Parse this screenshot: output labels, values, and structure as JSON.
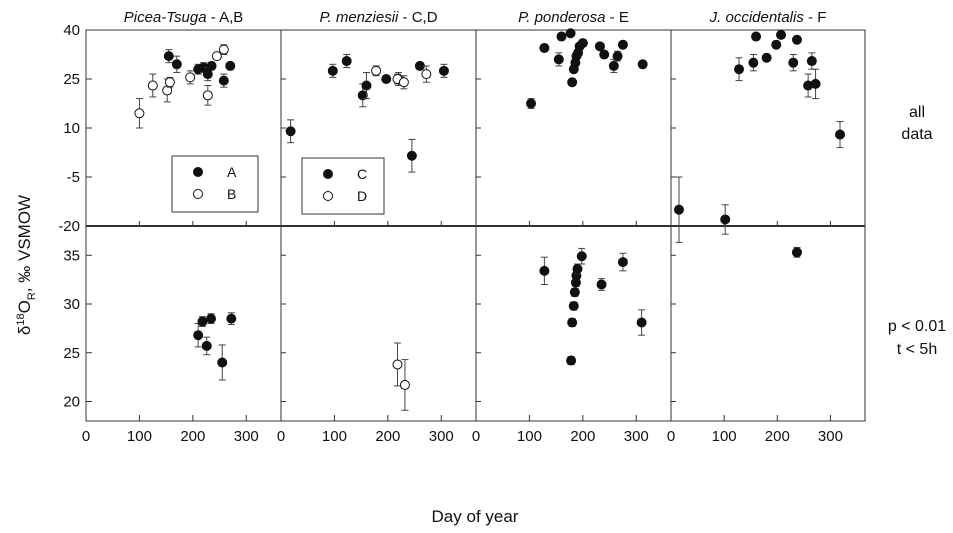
{
  "chart_data": {
    "type": "scatter",
    "xlabel": "Day of year",
    "ylabel": "δ18OR, ‰ VSMOW",
    "xlim": [
      0,
      365
    ],
    "xticks": [
      0,
      100,
      200,
      300
    ],
    "panels_top": {
      "row_label": [
        "all",
        "data"
      ],
      "ylim": [
        -20,
        40
      ],
      "yticks": [
        40,
        25,
        10,
        -5,
        -20
      ],
      "ytick_labels": [
        "40",
        "25",
        "10",
        "-5",
        "-20"
      ]
    },
    "panels_bottom": {
      "row_label": [
        "p < 0.01",
        "t < 5h"
      ],
      "ylim": [
        18,
        38
      ],
      "yticks": [
        35,
        30,
        25,
        20
      ],
      "ytick_labels": [
        "35",
        "30",
        "25",
        "20"
      ]
    },
    "columns": [
      {
        "title_italic": "Picea-Tsuga",
        "title_rest": " - A,B",
        "legend": [
          {
            "marker": "filled",
            "label": "A"
          },
          {
            "marker": "open",
            "label": "B"
          }
        ],
        "top_series": [
          {
            "name": "A",
            "marker": "filled",
            "points": [
              {
                "x": 155,
                "y": 32.0,
                "err": 2.0
              },
              {
                "x": 170,
                "y": 29.5,
                "err": 2.5
              },
              {
                "x": 210,
                "y": 28.0,
                "err": 1.5
              },
              {
                "x": 220,
                "y": 28.5,
                "err": 1.5
              },
              {
                "x": 228,
                "y": 26.5,
                "err": 2.0
              },
              {
                "x": 235,
                "y": 29.0,
                "err": 1.0
              },
              {
                "x": 258,
                "y": 24.5,
                "err": 2.0
              },
              {
                "x": 270,
                "y": 29.0,
                "err": 1.0
              }
            ]
          },
          {
            "name": "B",
            "marker": "open",
            "points": [
              {
                "x": 100,
                "y": 14.5,
                "err": 4.5
              },
              {
                "x": 125,
                "y": 23.0,
                "err": 3.5
              },
              {
                "x": 152,
                "y": 21.5,
                "err": 3.5
              },
              {
                "x": 157,
                "y": 24.0,
                "err": 1.5
              },
              {
                "x": 195,
                "y": 25.5,
                "err": 2.0
              },
              {
                "x": 228,
                "y": 20.0,
                "err": 3.0
              },
              {
                "x": 245,
                "y": 32.0,
                "err": 1.0
              },
              {
                "x": 258,
                "y": 34.0,
                "err": 1.5
              }
            ]
          }
        ],
        "bottom_series": [
          {
            "name": "A",
            "marker": "filled",
            "points": [
              {
                "x": 210,
                "y": 26.8,
                "err": 1.2
              },
              {
                "x": 218,
                "y": 28.2,
                "err": 0.5
              },
              {
                "x": 226,
                "y": 25.7,
                "err": 0.9
              },
              {
                "x": 234,
                "y": 28.5,
                "err": 0.5
              },
              {
                "x": 255,
                "y": 24.0,
                "err": 1.8
              },
              {
                "x": 272,
                "y": 28.5,
                "err": 0.6
              }
            ]
          }
        ]
      },
      {
        "title_italic": "P. menziesii",
        "title_rest": " - C,D",
        "legend": [
          {
            "marker": "filled",
            "label": "C"
          },
          {
            "marker": "open",
            "label": "D"
          }
        ],
        "top_series": [
          {
            "name": "C",
            "marker": "filled",
            "points": [
              {
                "x": 18,
                "y": 9.0,
                "err": 3.5
              },
              {
                "x": 97,
                "y": 27.5,
                "err": 2.0
              },
              {
                "x": 123,
                "y": 30.5,
                "err": 2.0
              },
              {
                "x": 153,
                "y": 20.0,
                "err": 3.5
              },
              {
                "x": 160,
                "y": 23.0,
                "err": 4.0
              },
              {
                "x": 197,
                "y": 25.0,
                "err": 1.0
              },
              {
                "x": 220,
                "y": 25.0,
                "err": 2.0
              },
              {
                "x": 245,
                "y": 1.5,
                "err": 5.0
              },
              {
                "x": 260,
                "y": 29.0,
                "err": 1.0
              },
              {
                "x": 305,
                "y": 27.5,
                "err": 2.0
              }
            ]
          },
          {
            "name": "D",
            "marker": "open",
            "points": [
              {
                "x": 178,
                "y": 27.5,
                "err": 1.5
              },
              {
                "x": 218,
                "y": 25.0,
                "err": 1.5
              },
              {
                "x": 230,
                "y": 24.0,
                "err": 2.0
              },
              {
                "x": 272,
                "y": 26.5,
                "err": 2.5
              }
            ]
          }
        ],
        "bottom_series": [
          {
            "name": "D",
            "marker": "open",
            "points": [
              {
                "x": 218,
                "y": 23.8,
                "err": 2.2
              },
              {
                "x": 232,
                "y": 21.7,
                "err": 2.6
              }
            ]
          }
        ]
      },
      {
        "title_italic": "P. ponderosa",
        "title_rest": " - E",
        "legend": [],
        "top_series": [
          {
            "name": "E",
            "marker": "filled",
            "points": [
              {
                "x": 103,
                "y": 17.5,
                "err": 1.5
              },
              {
                "x": 128,
                "y": 34.5,
                "err": 1.0
              },
              {
                "x": 155,
                "y": 31.0,
                "err": 2.0
              },
              {
                "x": 160,
                "y": 38.0,
                "err": 1.0
              },
              {
                "x": 177,
                "y": 39.0,
                "err": 0.5
              },
              {
                "x": 180,
                "y": 24.0,
                "err": 1.0
              },
              {
                "x": 183,
                "y": 28.0,
                "err": 1.0
              },
              {
                "x": 186,
                "y": 30.0,
                "err": 1.0
              },
              {
                "x": 188,
                "y": 32.0,
                "err": 1.0
              },
              {
                "x": 191,
                "y": 33.0,
                "err": 1.0
              },
              {
                "x": 194,
                "y": 35.0,
                "err": 1.0
              },
              {
                "x": 200,
                "y": 36.0,
                "err": 1.0
              },
              {
                "x": 232,
                "y": 35.0,
                "err": 1.0
              },
              {
                "x": 240,
                "y": 32.5,
                "err": 1.0
              },
              {
                "x": 258,
                "y": 29.0,
                "err": 2.0
              },
              {
                "x": 265,
                "y": 32.0,
                "err": 1.5
              },
              {
                "x": 275,
                "y": 35.5,
                "err": 1.0
              },
              {
                "x": 312,
                "y": 29.5,
                "err": 1.0
              }
            ]
          }
        ],
        "bottom_series": [
          {
            "name": "E",
            "marker": "filled",
            "points": [
              {
                "x": 128,
                "y": 33.4,
                "err": 1.4
              },
              {
                "x": 178,
                "y": 24.2,
                "err": 0.4
              },
              {
                "x": 180,
                "y": 28.1,
                "err": 0.4
              },
              {
                "x": 183,
                "y": 29.8,
                "err": 0.4
              },
              {
                "x": 185,
                "y": 31.2,
                "err": 0.4
              },
              {
                "x": 187,
                "y": 32.2,
                "err": 0.4
              },
              {
                "x": 188,
                "y": 32.9,
                "err": 0.4
              },
              {
                "x": 190,
                "y": 33.6,
                "err": 0.5
              },
              {
                "x": 198,
                "y": 34.9,
                "err": 0.8
              },
              {
                "x": 235,
                "y": 32.0,
                "err": 0.6
              },
              {
                "x": 275,
                "y": 34.3,
                "err": 0.9
              },
              {
                "x": 310,
                "y": 28.1,
                "err": 1.3
              }
            ]
          }
        ]
      },
      {
        "title_italic": "J. occidentalis",
        "title_rest": " - F",
        "legend": [],
        "top_series": [
          {
            "name": "F",
            "marker": "filled",
            "points": [
              {
                "x": 15,
                "y": -15.0,
                "err": 10.0
              },
              {
                "x": 102,
                "y": -18.0,
                "err": 4.5
              },
              {
                "x": 128,
                "y": 28.0,
                "err": 3.5
              },
              {
                "x": 155,
                "y": 30.0,
                "err": 2.5
              },
              {
                "x": 160,
                "y": 38.0,
                "err": 1.0
              },
              {
                "x": 180,
                "y": 31.5,
                "err": 1.0
              },
              {
                "x": 198,
                "y": 35.5,
                "err": 1.0
              },
              {
                "x": 207,
                "y": 38.5,
                "err": 1.0
              },
              {
                "x": 230,
                "y": 30.0,
                "err": 2.5
              },
              {
                "x": 237,
                "y": 37.0,
                "err": 1.0
              },
              {
                "x": 258,
                "y": 23.0,
                "err": 3.5
              },
              {
                "x": 265,
                "y": 30.5,
                "err": 2.5
              },
              {
                "x": 272,
                "y": 23.5,
                "err": 4.5
              },
              {
                "x": 318,
                "y": 8.0,
                "err": 4.0
              }
            ]
          }
        ],
        "bottom_series": [
          {
            "name": "F",
            "marker": "filled",
            "points": [
              {
                "x": 237,
                "y": 35.3,
                "err": 0.5
              }
            ]
          }
        ]
      }
    ]
  }
}
